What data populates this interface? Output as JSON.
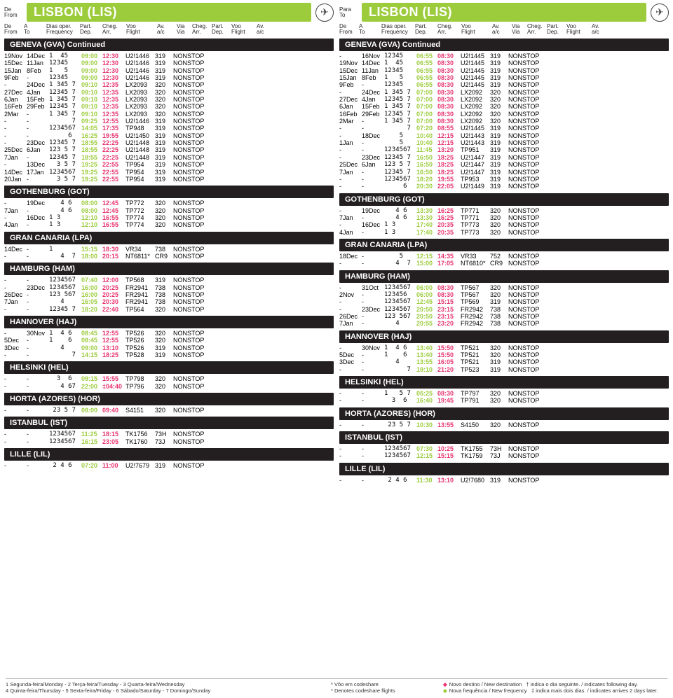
{
  "left": {
    "direction_label_top": "De",
    "direction_label_bottom": "From",
    "city_title": "LISBON (LIS)",
    "headers": {
      "from": "De\nFrom",
      "to": "A\nTo",
      "freq": "Dias oper.\nFrequency",
      "dep": "Part.\nDep.",
      "arr": "Cheg.\nArr.",
      "flt": "Voo\nFlight",
      "ac": "Av.\na/c",
      "via": "Via\nVia",
      "arr2": "Cheg.\nArr.",
      "dep2": "Part.\nDep.",
      "flt2": "Voo\nFlight",
      "ac2": "Av.\na/c"
    },
    "sections": [
      {
        "title": "GENEVA (GVA)  Continued",
        "rows": [
          [
            "19Nov",
            "14Dec",
            "1  45",
            "09:00",
            "12:30",
            "U2!1446",
            "319",
            "NONSTOP"
          ],
          [
            "15Dec",
            "11Jan",
            "12345",
            "09:00",
            "12:30",
            "U2!1446",
            "319",
            "NONSTOP"
          ],
          [
            "15Jan",
            "8Feb",
            "1   5",
            "09:00",
            "12:30",
            "U2!1446",
            "319",
            "NONSTOP"
          ],
          [
            "9Feb",
            "-",
            "12345",
            "09:00",
            "12:30",
            "U2!1446",
            "319",
            "NONSTOP"
          ],
          [
            "-",
            "24Dec",
            "1 345 7",
            "09:10",
            "12:35",
            "LX2093",
            "320",
            "NONSTOP"
          ],
          [
            "27Dec",
            "4Jan",
            "12345 7",
            "09:10",
            "12:35",
            "LX2093",
            "320",
            "NONSTOP"
          ],
          [
            "6Jan",
            "15Feb",
            "1 345 7",
            "09:10",
            "12:35",
            "LX2093",
            "320",
            "NONSTOP"
          ],
          [
            "16Feb",
            "29Feb",
            "12345 7",
            "09:10",
            "12:35",
            "LX2093",
            "320",
            "NONSTOP"
          ],
          [
            "2Mar",
            "-",
            "1 345 7",
            "09:10",
            "12:35",
            "LX2093",
            "320",
            "NONSTOP"
          ],
          [
            "-",
            "-",
            "      7",
            "09:25",
            "12:55",
            "U2!1446",
            "319",
            "NONSTOP"
          ],
          [
            "-",
            "-",
            "1234567",
            "14:05",
            "17:35",
            "TP948",
            "319",
            "NONSTOP"
          ],
          [
            "-",
            "-",
            "     6",
            "16:25",
            "19:55",
            "U2!1450",
            "319",
            "NONSTOP"
          ],
          [
            "-",
            "23Dec",
            "12345 7",
            "18:55",
            "22:25",
            "U2!1448",
            "319",
            "NONSTOP"
          ],
          [
            "25Dec",
            "6Jan",
            "123 5 7",
            "18:55",
            "22:25",
            "U2!1448",
            "319",
            "NONSTOP"
          ],
          [
            "7Jan",
            "-",
            "12345 7",
            "18:55",
            "22:25",
            "U2!1448",
            "319",
            "NONSTOP"
          ],
          [
            "-",
            "13Dec",
            "  3 5 7",
            "19:25",
            "22:55",
            "TP954",
            "319",
            "NONSTOP"
          ],
          [
            "14Dec",
            "17Jan",
            "1234567",
            "19:25",
            "22:55",
            "TP954",
            "319",
            "NONSTOP"
          ],
          [
            "20Jan",
            "-",
            "  3 5 7",
            "19:25",
            "22:55",
            "TP954",
            "319",
            "NONSTOP"
          ]
        ]
      },
      {
        "title": "GOTHENBURG (GOT)",
        "rows": [
          [
            "-",
            "19Dec",
            "   4 6",
            "08:00",
            "12:45",
            "TP772",
            "320",
            "NONSTOP"
          ],
          [
            "7Jan",
            "-",
            "   4 6",
            "08:00",
            "12:45",
            "TP772",
            "320",
            "NONSTOP"
          ],
          [
            "-",
            "16Dec",
            "1 3",
            "12:10",
            "16:55",
            "TP774",
            "320",
            "NONSTOP"
          ],
          [
            "4Jan",
            "-",
            "1 3",
            "12:10",
            "16:55",
            "TP774",
            "320",
            "NONSTOP"
          ]
        ]
      },
      {
        "title": "GRAN CANARIA (LPA)",
        "rows": [
          [
            "14Dec",
            "-",
            "1",
            "15:15",
            "18:30",
            "VR34",
            "738",
            "NONSTOP"
          ],
          [
            "-",
            "-",
            "   4  7",
            "18:00",
            "20:15",
            "NT6811*",
            "CR9",
            "NONSTOP"
          ]
        ]
      },
      {
        "title": "HAMBURG (HAM)",
        "rows": [
          [
            "-",
            "-",
            "1234567",
            "07:40",
            "12:00",
            "TP568",
            "319",
            "NONSTOP"
          ],
          [
            "-",
            "23Dec",
            "1234567",
            "16:00",
            "20:25",
            "FR2941",
            "738",
            "NONSTOP"
          ],
          [
            "26Dec",
            "-",
            "123 567",
            "16:00",
            "20:25",
            "FR2941",
            "738",
            "NONSTOP"
          ],
          [
            "7Jan",
            "-",
            "   4",
            "16:05",
            "20:30",
            "FR2941",
            "738",
            "NONSTOP"
          ],
          [
            "-",
            "-",
            "12345 7",
            "18:20",
            "22:40",
            "TP564",
            "320",
            "NONSTOP"
          ]
        ]
      },
      {
        "title": "HANNOVER (HAJ)",
        "rows": [
          [
            "-",
            "30Nov",
            "1  4 6",
            "08:45",
            "12:55",
            "TP526",
            "320",
            "NONSTOP"
          ],
          [
            "5Dec",
            "-",
            "1    6",
            "08:45",
            "12:55",
            "TP526",
            "320",
            "NONSTOP"
          ],
          [
            "3Dec",
            "-",
            "   4",
            "09:00",
            "13:10",
            "TP526",
            "319",
            "NONSTOP"
          ],
          [
            "-",
            "-",
            "      7",
            "14:15",
            "18:25",
            "TP528",
            "319",
            "NONSTOP"
          ]
        ]
      },
      {
        "title": "HELSINKI (HEL)",
        "rows": [
          [
            "-",
            "-",
            "  3  6",
            "09:15",
            "15:55",
            "TP798",
            "320",
            "NONSTOP"
          ],
          [
            "-",
            "-",
            "   4 67",
            "22:00",
            "‡04:40",
            "TP796",
            "320",
            "NONSTOP"
          ]
        ]
      },
      {
        "title": "HORTA (AZORES) (HOR)",
        "rows": [
          [
            "-",
            "-",
            " 23 5 7",
            "08:00",
            "09:40",
            "S4151",
            "320",
            "NONSTOP"
          ]
        ]
      },
      {
        "title": "ISTANBUL (IST)",
        "rows": [
          [
            "-",
            "-",
            "1234567",
            "11:25",
            "18:15",
            "TK1756",
            "73H",
            "NONSTOP"
          ],
          [
            "-",
            "-",
            "1234567",
            "16:15",
            "23:05",
            "TK1760",
            "73J",
            "NONSTOP"
          ]
        ]
      },
      {
        "title": "LILLE (LIL)",
        "rows": [
          [
            "-",
            "-",
            " 2 4 6",
            "07:20",
            "11:00",
            "U2!7679",
            "319",
            "NONSTOP"
          ]
        ]
      }
    ]
  },
  "right": {
    "direction_label_top": "Para",
    "direction_label_bottom": "To",
    "city_title": "LISBON (LIS)",
    "headers": {
      "from": "De\nFrom",
      "to": "A\nTo",
      "freq": "Dias oper.\nFrequency",
      "dep": "Part.\nDep.",
      "arr": "Cheg.\nArr.",
      "flt": "Voo\nFlight",
      "ac": "Av.\na/c",
      "via": "Via\nVia",
      "arr2": "Cheg.\nArr.",
      "dep2": "Part.\nDep.",
      "flt2": "Voo\nFlight",
      "ac2": "Av.\na/c"
    },
    "sections": [
      {
        "title": "GENEVA (GVA)  Continued",
        "rows": [
          [
            "-",
            "16Nov",
            "12345",
            "06:55",
            "08:30",
            "U2!1445",
            "319",
            "NONSTOP"
          ],
          [
            "19Nov",
            "14Dec",
            "1  45",
            "06:55",
            "08:30",
            "U2!1445",
            "319",
            "NONSTOP"
          ],
          [
            "15Dec",
            "11Jan",
            "12345",
            "06:55",
            "08:30",
            "U2!1445",
            "319",
            "NONSTOP"
          ],
          [
            "15Jan",
            "8Feb",
            "1   5",
            "06:55",
            "08:30",
            "U2!1445",
            "319",
            "NONSTOP"
          ],
          [
            "9Feb",
            "-",
            "12345",
            "06:55",
            "08:30",
            "U2!1445",
            "319",
            "NONSTOP"
          ],
          [
            "-",
            "24Dec",
            "1 345 7",
            "07:00",
            "08:30",
            "LX2092",
            "320",
            "NONSTOP"
          ],
          [
            "27Dec",
            "4Jan",
            "12345 7",
            "07:00",
            "08:30",
            "LX2092",
            "320",
            "NONSTOP"
          ],
          [
            "6Jan",
            "15Feb",
            "1 345 7",
            "07:00",
            "08:30",
            "LX2092",
            "320",
            "NONSTOP"
          ],
          [
            "16Feb",
            "29Feb",
            "12345 7",
            "07:00",
            "08:30",
            "LX2092",
            "320",
            "NONSTOP"
          ],
          [
            "2Mar",
            "-",
            "1 345 7",
            "07:00",
            "08:30",
            "LX2092",
            "320",
            "NONSTOP"
          ],
          [
            "-",
            "-",
            "      7",
            "07:20",
            "08:55",
            "U2!1445",
            "319",
            "NONSTOP"
          ],
          [
            "-",
            "18Dec",
            "    5",
            "10:40",
            "12:15",
            "U2!1443",
            "319",
            "NONSTOP"
          ],
          [
            "1Jan",
            "-",
            "    5",
            "10:40",
            "12:15",
            "U2!1443",
            "319",
            "NONSTOP"
          ],
          [
            "-",
            "-",
            "1234567",
            "11:45",
            "13:20",
            "TP951",
            "319",
            "NONSTOP"
          ],
          [
            "-",
            "23Dec",
            "12345 7",
            "16:50",
            "18:25",
            "U2!1447",
            "319",
            "NONSTOP"
          ],
          [
            "25Dec",
            "6Jan",
            "123 5 7",
            "16:50",
            "18:25",
            "U2!1447",
            "319",
            "NONSTOP"
          ],
          [
            "7Jan",
            "-",
            "12345 7",
            "16:50",
            "18:25",
            "U2!1447",
            "319",
            "NONSTOP"
          ],
          [
            "-",
            "-",
            "1234567",
            "18:20",
            "19:55",
            "TP953",
            "319",
            "NONSTOP"
          ],
          [
            "-",
            "-",
            "     6",
            "20:30",
            "22:05",
            "U2!1449",
            "319",
            "NONSTOP"
          ]
        ]
      },
      {
        "title": "GOTHENBURG (GOT)",
        "rows": [
          [
            "-",
            "19Dec",
            "   4 6",
            "13:30",
            "16:25",
            "TP771",
            "320",
            "NONSTOP"
          ],
          [
            "7Jan",
            "-",
            "   4 6",
            "13:30",
            "16:25",
            "TP771",
            "320",
            "NONSTOP"
          ],
          [
            "-",
            "16Dec",
            "1 3",
            "17:40",
            "20:35",
            "TP773",
            "320",
            "NONSTOP"
          ],
          [
            "4Jan",
            "-",
            "1 3",
            "17:40",
            "20:35",
            "TP773",
            "320",
            "NONSTOP"
          ]
        ]
      },
      {
        "title": "GRAN CANARIA (LPA)",
        "rows": [
          [
            "18Dec",
            "-",
            "    5",
            "12:15",
            "14:35",
            "VR33",
            "752",
            "NONSTOP"
          ],
          [
            "-",
            "-",
            "   4  7",
            "15:00",
            "17:05",
            "NT6810*",
            "CR9",
            "NONSTOP"
          ]
        ]
      },
      {
        "title": "HAMBURG (HAM)",
        "rows": [
          [
            "-",
            "31Oct",
            "1234567",
            "06:00",
            "08:30",
            "TP567",
            "320",
            "NONSTOP"
          ],
          [
            "2Nov",
            "-",
            "123456",
            "06:00",
            "08:30",
            "TP567",
            "320",
            "NONSTOP"
          ],
          [
            "-",
            "-",
            "1234567",
            "12:45",
            "15:15",
            "TP569",
            "319",
            "NONSTOP"
          ],
          [
            "-",
            "23Dec",
            "1234567",
            "20:50",
            "23:15",
            "FR2942",
            "738",
            "NONSTOP"
          ],
          [
            "26Dec",
            "-",
            "123 567",
            "20:50",
            "23:15",
            "FR2942",
            "738",
            "NONSTOP"
          ],
          [
            "7Jan",
            "-",
            "   4",
            "20:55",
            "23:20",
            "FR2942",
            "738",
            "NONSTOP"
          ]
        ]
      },
      {
        "title": "HANNOVER (HAJ)",
        "rows": [
          [
            "-",
            "30Nov",
            "1  4 6",
            "13:40",
            "15:50",
            "TP521",
            "320",
            "NONSTOP"
          ],
          [
            "5Dec",
            "-",
            "1    6",
            "13:40",
            "15:50",
            "TP521",
            "320",
            "NONSTOP"
          ],
          [
            "3Dec",
            "-",
            "   4",
            "13:55",
            "16:05",
            "TP521",
            "319",
            "NONSTOP"
          ],
          [
            "-",
            "-",
            "      7",
            "19:10",
            "21:20",
            "TP523",
            "319",
            "NONSTOP"
          ]
        ]
      },
      {
        "title": "HELSINKI (HEL)",
        "rows": [
          [
            "-",
            "-",
            "1   5 7",
            "05:25",
            "08:30",
            "TP797",
            "320",
            "NONSTOP"
          ],
          [
            "-",
            "-",
            "  3  6",
            "16:40",
            "19:45",
            "TP791",
            "320",
            "NONSTOP"
          ]
        ]
      },
      {
        "title": "HORTA (AZORES) (HOR)",
        "rows": [
          [
            "-",
            "-",
            " 23 5 7",
            "10:30",
            "13:55",
            "S4150",
            "320",
            "NONSTOP"
          ]
        ]
      },
      {
        "title": "ISTANBUL (IST)",
        "rows": [
          [
            "-",
            "-",
            "1234567",
            "07:30",
            "10:25",
            "TK1755",
            "73H",
            "NONSTOP"
          ],
          [
            "-",
            "-",
            "1234567",
            "12:15",
            "15:15",
            "TK1759",
            "73J",
            "NONSTOP"
          ]
        ]
      },
      {
        "title": "LILLE (LIL)",
        "rows": [
          [
            "-",
            "-",
            " 2 4 6",
            "11:30",
            "13:10",
            "U2!7680",
            "319",
            "NONSTOP"
          ]
        ]
      }
    ]
  },
  "footer": {
    "days": "1 Segunda-feira/Monday - 2 Terça-feira/Tuesday - 3 Quarta-feira/Wednesday\n4 Quinta-feira/Thursday - 5 Sexta-feira/Friday - 6 Sábado/Saturday - 7 Domingo/Sunday",
    "codeshare": "* Vôo em codeshare\n* Denotes codeshare flights",
    "newdest": "Novo destino / New destination",
    "newfreq": "Nova frequência / New frequency",
    "following": "indica o dia seguinte. / indicates following day.",
    "twodays": "indica mais dois dias. / indicates arrives 2 days later."
  }
}
